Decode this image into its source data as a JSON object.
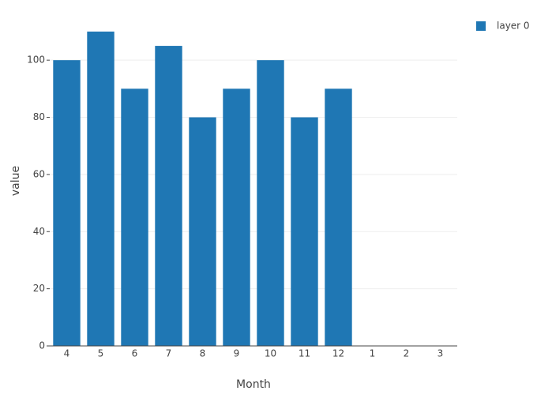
{
  "chart_data": {
    "type": "bar",
    "x_label": "Month",
    "y_label": "value",
    "categories": [
      "4",
      "5",
      "6",
      "7",
      "8",
      "9",
      "10",
      "11",
      "12",
      "1",
      "2",
      "3"
    ],
    "series": [
      {
        "name": "layer 0",
        "color": "#1f77b4",
        "values": [
          100,
          110,
          90,
          105,
          80,
          90,
          100,
          80,
          90,
          null,
          null,
          null
        ]
      }
    ],
    "ylim": [
      0,
      115.8
    ],
    "yticks": [
      0,
      20,
      40,
      60,
      80,
      100
    ],
    "grid": true,
    "legend": "top-right"
  }
}
